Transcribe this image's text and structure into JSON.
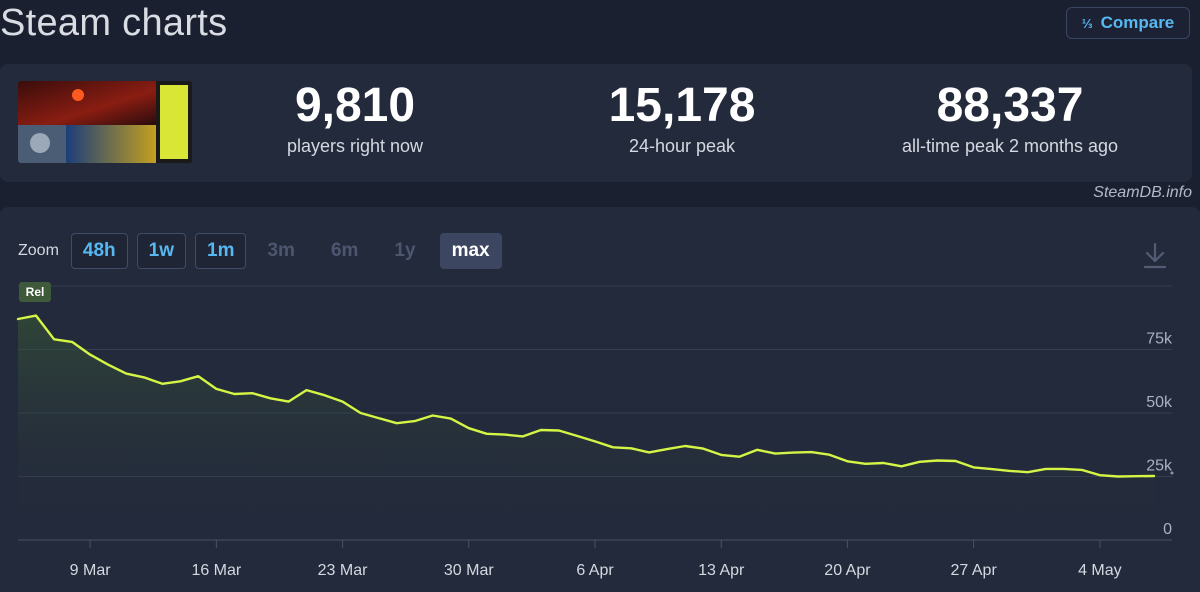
{
  "header": {
    "title": "Steam charts",
    "compare_icon": "fraction-icon",
    "compare_label": "Compare"
  },
  "stats": [
    {
      "value": "9,810",
      "label": "players right now"
    },
    {
      "value": "15,178",
      "label": "24-hour peak"
    },
    {
      "value": "88,337",
      "label": "all-time peak 2 months ago"
    }
  ],
  "credit": "SteamDB.info",
  "zoom": {
    "label": "Zoom",
    "options": [
      {
        "label": "48h",
        "state": "link"
      },
      {
        "label": "1w",
        "state": "link"
      },
      {
        "label": "1m",
        "state": "link"
      },
      {
        "label": "3m",
        "state": "disabled"
      },
      {
        "label": "6m",
        "state": "disabled"
      },
      {
        "label": "1y",
        "state": "disabled"
      },
      {
        "label": "max",
        "state": "selected"
      }
    ]
  },
  "colors": {
    "line": "#d4f545",
    "accent": "#57b8f1",
    "marker_bg": "#3f5a3a"
  },
  "chart_data": {
    "type": "area",
    "marker_label": "Rel",
    "x_start": "2025-03-05",
    "x_end": "2025-05-08",
    "x_ticks": [
      {
        "date": "2025-03-09",
        "label": "9 Mar"
      },
      {
        "date": "2025-03-16",
        "label": "16 Mar"
      },
      {
        "date": "2025-03-23",
        "label": "23 Mar"
      },
      {
        "date": "2025-03-30",
        "label": "30 Mar"
      },
      {
        "date": "2025-04-06",
        "label": "6 Apr"
      },
      {
        "date": "2025-04-13",
        "label": "13 Apr"
      },
      {
        "date": "2025-04-20",
        "label": "20 Apr"
      },
      {
        "date": "2025-04-27",
        "label": "27 Apr"
      },
      {
        "date": "2025-05-04",
        "label": "4 May"
      }
    ],
    "y_ticks": [
      {
        "value": 0,
        "label": "0"
      },
      {
        "value": 25000,
        "label": "25k"
      },
      {
        "value": 50000,
        "label": "50k"
      },
      {
        "value": 75000,
        "label": "75k"
      }
    ],
    "ylim": [
      0,
      100000
    ],
    "series": [
      {
        "points": [
          [
            "2025-03-05",
            87000
          ],
          [
            "2025-03-06",
            88337
          ],
          [
            "2025-03-07",
            79000
          ],
          [
            "2025-03-08",
            78000
          ],
          [
            "2025-03-09",
            73000
          ],
          [
            "2025-03-10",
            69000
          ],
          [
            "2025-03-11",
            65500
          ],
          [
            "2025-03-12",
            64000
          ],
          [
            "2025-03-13",
            61500
          ],
          [
            "2025-03-14",
            62500
          ],
          [
            "2025-03-15",
            64500
          ],
          [
            "2025-03-16",
            59500
          ],
          [
            "2025-03-17",
            57500
          ],
          [
            "2025-03-18",
            57800
          ],
          [
            "2025-03-19",
            55800
          ],
          [
            "2025-03-20",
            54500
          ],
          [
            "2025-03-21",
            59000
          ],
          [
            "2025-03-22",
            57000
          ],
          [
            "2025-03-23",
            54500
          ],
          [
            "2025-03-24",
            50000
          ],
          [
            "2025-03-25",
            48000
          ],
          [
            "2025-03-26",
            46000
          ],
          [
            "2025-03-27",
            46800
          ],
          [
            "2025-03-28",
            49000
          ],
          [
            "2025-03-29",
            47800
          ],
          [
            "2025-03-30",
            44000
          ],
          [
            "2025-03-31",
            41800
          ],
          [
            "2025-04-01",
            41500
          ],
          [
            "2025-04-02",
            40800
          ],
          [
            "2025-04-03",
            43300
          ],
          [
            "2025-04-04",
            43100
          ],
          [
            "2025-04-05",
            41000
          ],
          [
            "2025-04-06",
            38800
          ],
          [
            "2025-04-07",
            36500
          ],
          [
            "2025-04-08",
            36100
          ],
          [
            "2025-04-09",
            34500
          ],
          [
            "2025-04-10",
            35800
          ],
          [
            "2025-04-11",
            37000
          ],
          [
            "2025-04-12",
            36000
          ],
          [
            "2025-04-13",
            33500
          ],
          [
            "2025-04-14",
            32800
          ],
          [
            "2025-04-15",
            35500
          ],
          [
            "2025-04-16",
            34000
          ],
          [
            "2025-04-17",
            34400
          ],
          [
            "2025-04-18",
            34600
          ],
          [
            "2025-04-19",
            33600
          ],
          [
            "2025-04-20",
            31000
          ],
          [
            "2025-04-21",
            30000
          ],
          [
            "2025-04-22",
            30300
          ],
          [
            "2025-04-23",
            29000
          ],
          [
            "2025-04-24",
            30800
          ],
          [
            "2025-04-25",
            31300
          ],
          [
            "2025-04-26",
            31100
          ],
          [
            "2025-04-27",
            28600
          ],
          [
            "2025-04-28",
            27900
          ],
          [
            "2025-04-29",
            27200
          ],
          [
            "2025-04-30",
            26700
          ],
          [
            "2025-05-01",
            28000
          ],
          [
            "2025-05-02",
            28000
          ],
          [
            "2025-05-03",
            27600
          ],
          [
            "2025-05-04",
            25500
          ],
          [
            "2025-05-05",
            25000
          ],
          [
            "2025-05-06",
            25100
          ],
          [
            "2025-05-07",
            25200
          ]
        ]
      }
    ],
    "grid": true,
    "y_axis_position": "right"
  }
}
